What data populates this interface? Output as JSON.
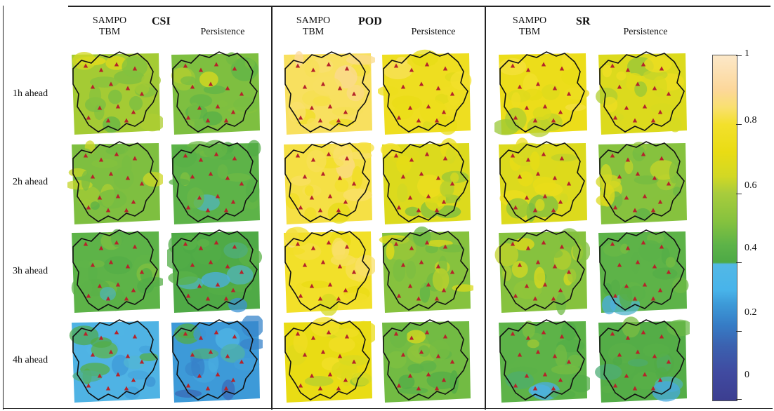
{
  "groups": [
    {
      "metric": "CSI",
      "model": "SAMPO\nTBM",
      "baseline": "Persistence"
    },
    {
      "metric": "POD",
      "model": "SAMPO\nTBM",
      "baseline": "Persistence"
    },
    {
      "metric": "SR",
      "model": "SAMPO\nTBM",
      "baseline": "Persistence"
    }
  ],
  "rows": [
    "1h ahead",
    "2h ahead",
    "3h ahead",
    "4h ahead"
  ],
  "colorbar": {
    "ticks": [
      "1",
      "0.8",
      "0.6",
      "0.4",
      "0.2",
      "0"
    ]
  },
  "panel_levels": {
    "CSI": {
      "model": [
        0.62,
        0.58,
        0.5,
        0.38
      ],
      "baseline": [
        0.58,
        0.5,
        0.42,
        0.33
      ]
    },
    "POD": {
      "model": [
        0.86,
        0.83,
        0.79,
        0.72
      ],
      "baseline": [
        0.76,
        0.68,
        0.6,
        0.55
      ]
    },
    "SR": {
      "model": [
        0.74,
        0.68,
        0.6,
        0.5
      ],
      "baseline": [
        0.68,
        0.6,
        0.5,
        0.45
      ]
    }
  }
}
